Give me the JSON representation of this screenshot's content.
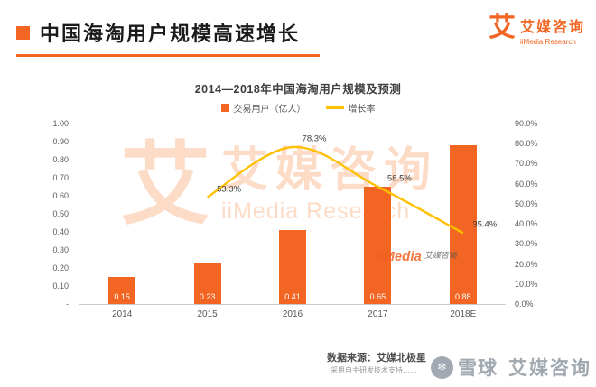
{
  "header": {
    "title": "中国海淘用户规模高速增长",
    "logo": {
      "glyph": "艾",
      "brand_cn": "艾媒咨询",
      "brand_en": "iiMedia Research"
    }
  },
  "chart": {
    "title": "2014—2018年中国海淘用户规模及预测",
    "legend": [
      {
        "label": "交易用户（亿人）",
        "color": "#F26522",
        "type": "bar"
      },
      {
        "label": "增长率",
        "color": "#FFC000",
        "type": "line"
      }
    ]
  },
  "chart_data": {
    "type": "bar+line",
    "title": "2014—2018年中国海淘用户规模及预测",
    "categories": [
      "2014",
      "2015",
      "2016",
      "2017",
      "2018E"
    ],
    "series": [
      {
        "name": "交易用户（亿人）",
        "type": "bar",
        "axis": "left",
        "color": "#F26522",
        "values": [
          0.15,
          0.23,
          0.41,
          0.65,
          0.88
        ]
      },
      {
        "name": "增长率",
        "type": "line",
        "axis": "right",
        "color": "#FFC000",
        "values": [
          null,
          53.3,
          78.3,
          58.5,
          35.4
        ]
      }
    ],
    "left_axis": {
      "min": 0,
      "max": 1.0,
      "ticks": [
        "1.00",
        "0.90",
        "0.80",
        "0.70",
        "0.60",
        "0.50",
        "0.40",
        "0.30",
        "0.20",
        "0.10",
        "-"
      ]
    },
    "right_axis": {
      "min": 0,
      "max": 90,
      "ticks": [
        "90.0%",
        "80.0%",
        "70.0%",
        "60.0%",
        "50.0%",
        "40.0%",
        "30.0%",
        "20.0%",
        "10.0%",
        "0.0%"
      ]
    },
    "grid": false,
    "legend_position": "top"
  },
  "watermarks": {
    "big_glyph": "艾",
    "big_cn": "艾媒咨询",
    "big_en": "iiMedia Research",
    "small_en": "iiMedia",
    "small_cn": "艾媒咨询",
    "bottom_brand": "雪球",
    "bottom_cn": "艾媒咨询",
    "bottom_icon": "❄"
  },
  "footer": {
    "source": "数据来源：艾媒北极星",
    "note": "采用自主研发技术支持……"
  },
  "colors": {
    "accent": "#F26522",
    "line": "#FFC000",
    "axis_text": "#595959",
    "watermark_orange": "#F37021",
    "watermark_gray": "#98a1aa"
  }
}
